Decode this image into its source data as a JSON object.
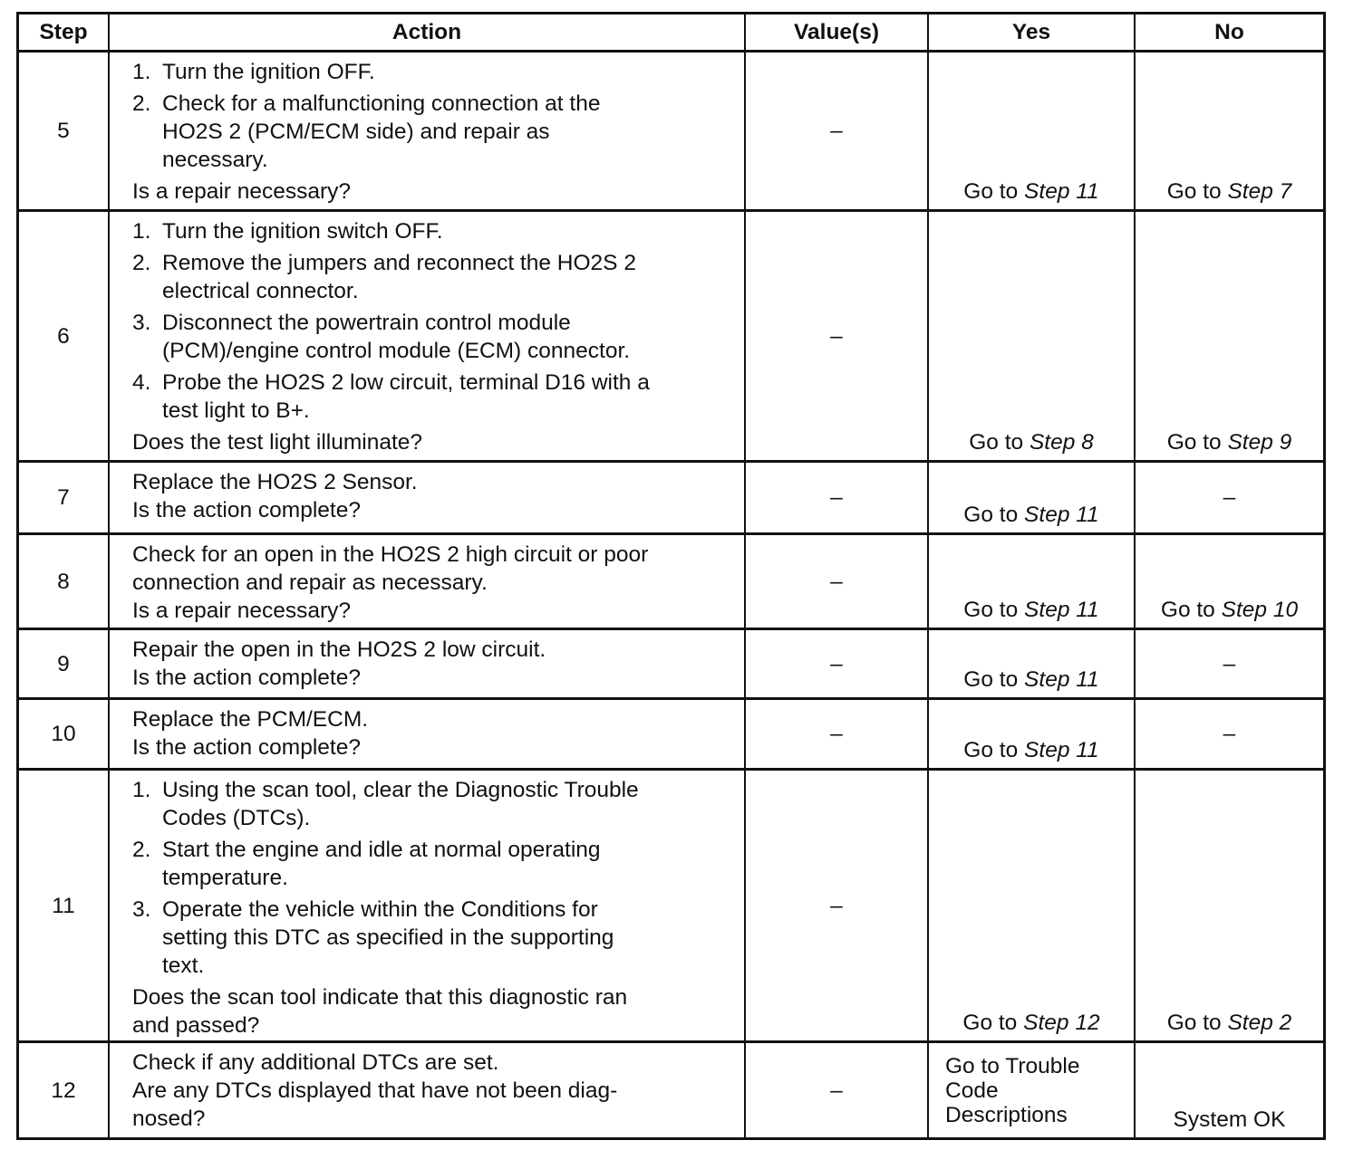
{
  "headers": {
    "step": "Step",
    "action": "Action",
    "values": "Value(s)",
    "yes": "Yes",
    "no": "No"
  },
  "rows": [
    {
      "step": "5",
      "items": [
        {
          "num": "1.",
          "lines": [
            "Turn the ignition OFF."
          ]
        },
        {
          "num": "2.",
          "lines": [
            "Check for a malfunctioning connection at the",
            "HO2S 2 (PCM/ECM side) and repair as",
            "necessary."
          ]
        }
      ],
      "question": [
        "Is a repair necessary?"
      ],
      "value": "–",
      "yes": {
        "prefix": "Go to",
        "step": "Step 11"
      },
      "no": {
        "prefix": "Go to",
        "step": "Step 7"
      }
    },
    {
      "step": "6",
      "items": [
        {
          "num": "1.",
          "lines": [
            "Turn the ignition switch OFF."
          ]
        },
        {
          "num": "2.",
          "lines": [
            "Remove the jumpers and reconnect the HO2S 2",
            "electrical connector."
          ]
        },
        {
          "num": "3.",
          "lines": [
            "Disconnect the powertrain control module",
            "(PCM)/engine control module (ECM) connector."
          ]
        },
        {
          "num": "4.",
          "lines": [
            "Probe the HO2S 2 low circuit, terminal D16 with a",
            "test light to B+."
          ]
        }
      ],
      "question": [
        "Does the test light illuminate?"
      ],
      "value": "–",
      "yes": {
        "prefix": "Go to",
        "step": "Step 8"
      },
      "no": {
        "prefix": "Go to",
        "step": "Step 9"
      }
    },
    {
      "step": "7",
      "items": [],
      "question": [
        "Replace the HO2S 2 Sensor.",
        "Is the action complete?"
      ],
      "value": "–",
      "yes": {
        "prefix": "Go to",
        "step": "Step 11"
      },
      "no": {
        "text": "–"
      }
    },
    {
      "step": "8",
      "items": [],
      "question": [
        "Check for an open in the HO2S 2 high circuit or poor",
        "connection and repair as necessary.",
        "Is a repair necessary?"
      ],
      "value": "–",
      "yes": {
        "prefix": "Go to",
        "step": "Step 11"
      },
      "no": {
        "prefix": "Go to",
        "step": "Step 10"
      }
    },
    {
      "step": "9",
      "items": [],
      "question": [
        "Repair the open in the HO2S 2 low circuit.",
        "Is the action complete?"
      ],
      "value": "–",
      "yes": {
        "prefix": "Go to",
        "step": "Step 11"
      },
      "no": {
        "text": "–"
      }
    },
    {
      "step": "10",
      "items": [],
      "question": [
        "Replace the PCM/ECM.",
        "Is the action complete?"
      ],
      "value": "–",
      "yes": {
        "prefix": "Go to",
        "step": "Step 11"
      },
      "no": {
        "text": "–"
      }
    },
    {
      "step": "11",
      "items": [
        {
          "num": "1.",
          "lines": [
            "Using the scan tool, clear the Diagnostic Trouble",
            "Codes (DTCs)."
          ]
        },
        {
          "num": "2.",
          "lines": [
            "Start the engine and idle at normal operating",
            "temperature."
          ]
        },
        {
          "num": "3.",
          "lines": [
            "Operate the vehicle within the Conditions for",
            "setting this DTC as specified in the supporting",
            "text."
          ]
        }
      ],
      "question": [
        "Does the scan tool indicate that this diagnostic ran",
        "and passed?"
      ],
      "value": "–",
      "yes": {
        "prefix": "Go to",
        "step": "Step 12"
      },
      "no": {
        "prefix": "Go to",
        "step": "Step 2"
      }
    },
    {
      "step": "12",
      "items": [],
      "question": [
        "Check if any additional DTCs are set.",
        "Are any DTCs displayed that have not been diag-",
        "nosed?"
      ],
      "value": "–",
      "yes": {
        "lines": [
          "Go to Trouble",
          "Code",
          "Descriptions"
        ]
      },
      "no": {
        "text": "System OK"
      }
    }
  ]
}
